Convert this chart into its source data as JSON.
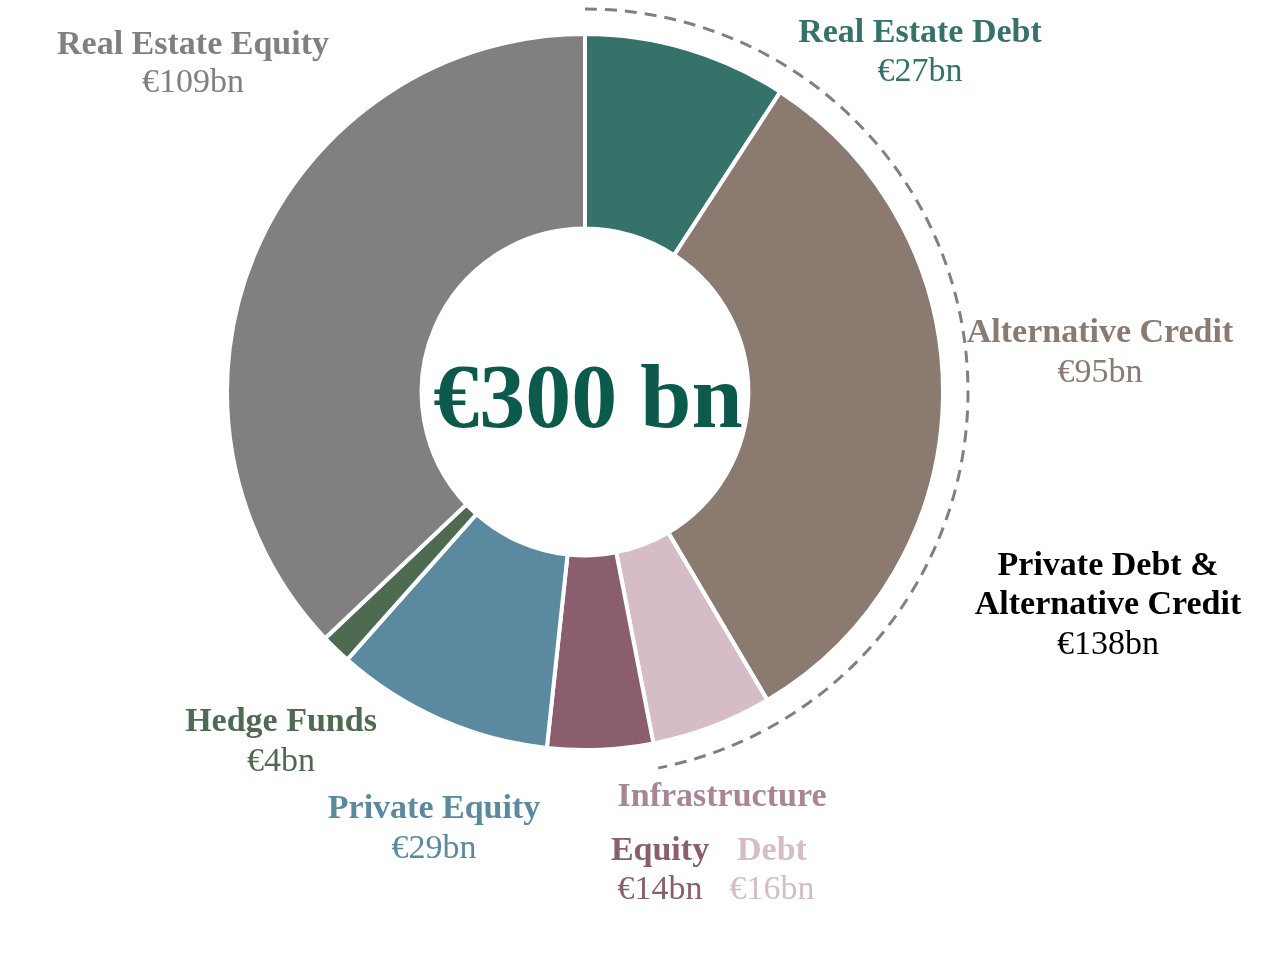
{
  "chart_data": {
    "type": "donut",
    "categories": [
      "Real Estate Debt",
      "Alternative Credit",
      "Debt",
      "Equity",
      "Private Equity",
      "Hedge Funds",
      "Real Estate Equity"
    ],
    "values": [
      27,
      95,
      16,
      14,
      29,
      4,
      109
    ],
    "colors": [
      "#35736a",
      "#8a7a6f",
      "#d6bcc7",
      "#8a5d6f",
      "#5b8aa0",
      "#4e6b51",
      "#808080"
    ],
    "value_labels": [
      "€27bn",
      "€95bn",
      "€16bn",
      "€14bn",
      "€29bn",
      "€4bn",
      "€109bn"
    ],
    "annotations": [
      "€300 bn",
      "Infrastructure",
      "Private Debt & Alternative Credit",
      "€138bn"
    ]
  }
}
